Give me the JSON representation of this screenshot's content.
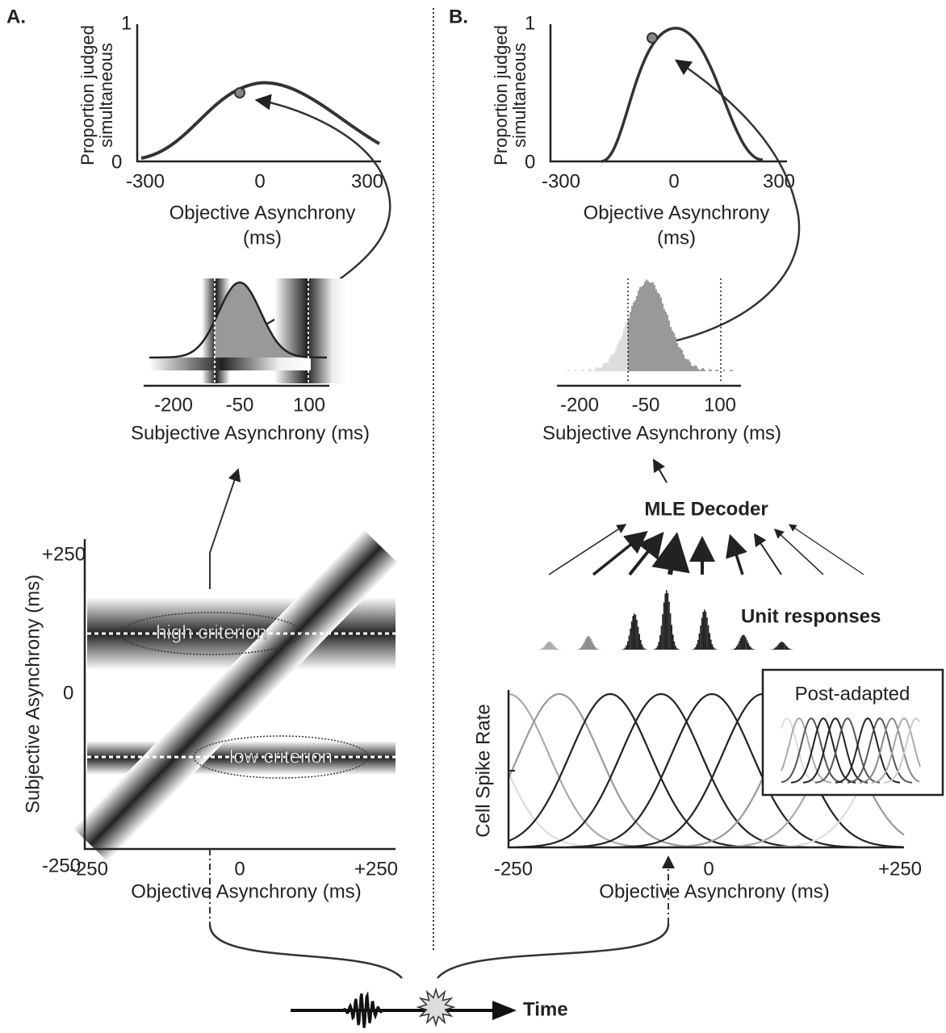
{
  "panel_a": {
    "label": "A.",
    "top_plot": {
      "y_label": [
        "Proportion judged",
        "simultaneous"
      ],
      "y_ticks": [
        "1",
        "0"
      ],
      "x_ticks": [
        "-300",
        "0",
        "300"
      ],
      "x_label": [
        "Objective Asynchrony",
        "(ms)"
      ]
    },
    "middle_plot": {
      "x_ticks": [
        "-200",
        "-50",
        "100"
      ],
      "x_label": "Subjective Asynchrony (ms)"
    },
    "bottom_plot": {
      "y_label": "Subjective Asynchrony (ms)",
      "y_ticks": [
        "+250",
        "0",
        "-250"
      ],
      "x_ticks": [
        "-250",
        "0",
        "+250"
      ],
      "x_label": "Objective Asynchrony (ms)",
      "annotations": [
        "high criterion",
        "low criterion"
      ]
    }
  },
  "panel_b": {
    "label": "B.",
    "top_plot": {
      "y_label": [
        "Proportion judged",
        "simultaneous"
      ],
      "y_ticks": [
        "1",
        "0"
      ],
      "x_ticks": [
        "-300",
        "0",
        "300"
      ],
      "x_label": [
        "Objective Asynchrony",
        "(ms)"
      ]
    },
    "middle_plot": {
      "x_ticks": [
        "-200",
        "-50",
        "100"
      ],
      "x_label": "Subjective Asynchrony (ms)"
    },
    "decoder": "MLE Decoder",
    "unit_responses": "Unit responses",
    "tuning_plot": {
      "y_label": "Cell Spike Rate",
      "x_ticks": [
        "-250",
        "0",
        "+250"
      ],
      "x_label": "Objective Asynchrony (ms)",
      "inset_title": "Post-adapted"
    }
  },
  "timeline": {
    "label": "Time"
  }
}
